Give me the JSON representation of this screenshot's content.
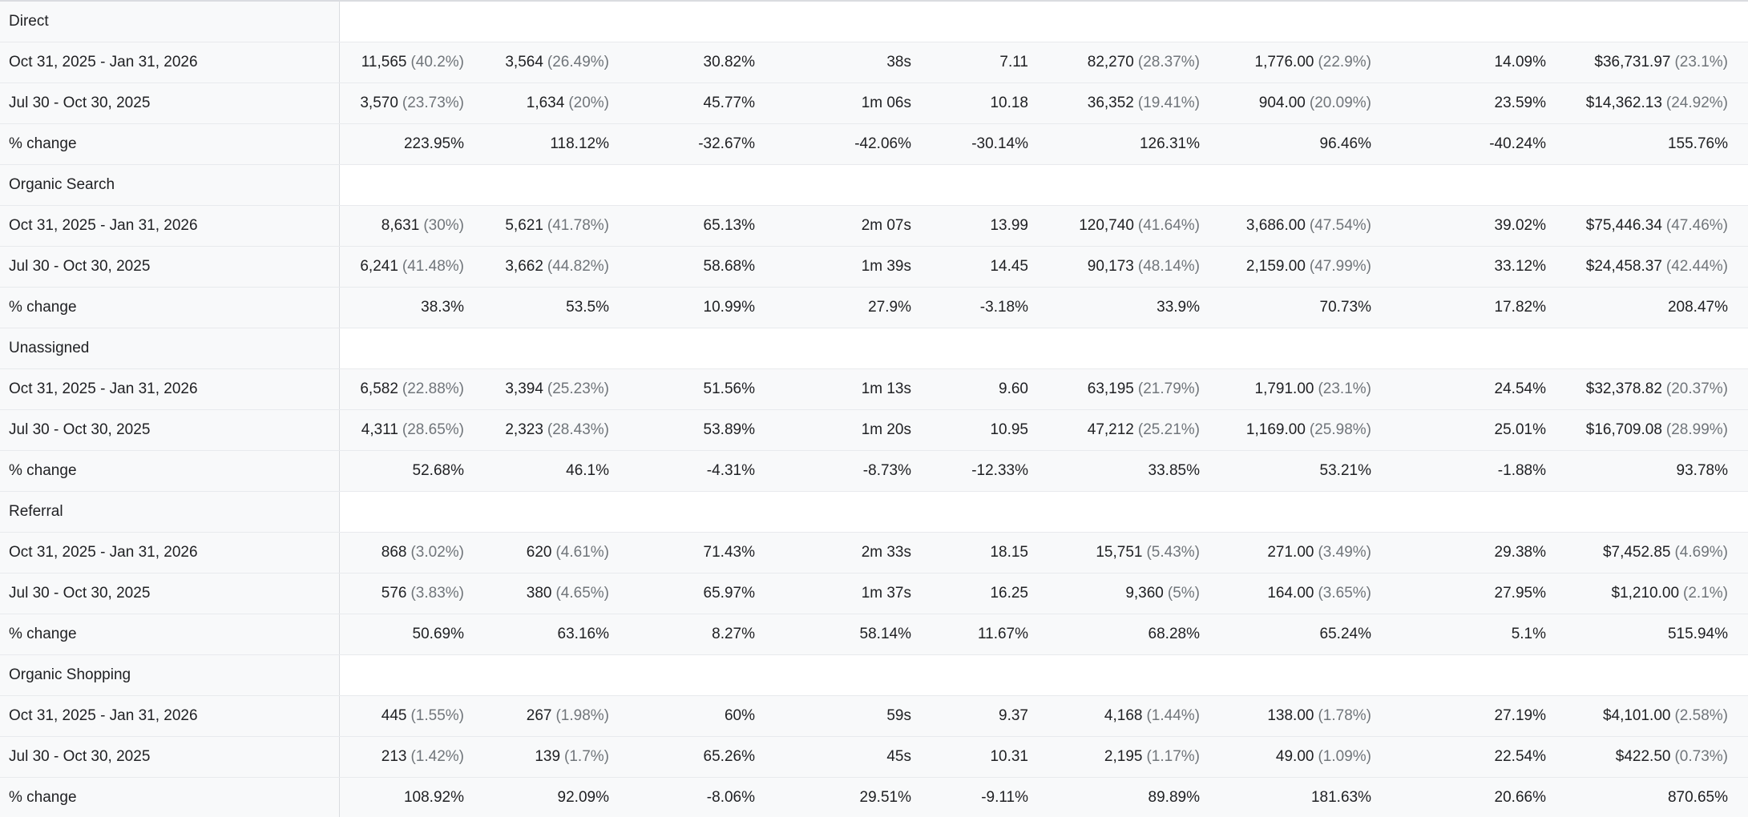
{
  "groups": [
    {
      "name": "Direct",
      "rows": [
        {
          "label": "Oct 31, 2025 - Jan 31, 2026",
          "cells": [
            [
              "11,565",
              "(40.2%)"
            ],
            [
              "3,564",
              "(26.49%)"
            ],
            [
              "30.82%",
              ""
            ],
            [
              "38s",
              ""
            ],
            [
              "7.11",
              ""
            ],
            [
              "82,270",
              "(28.37%)"
            ],
            [
              "1,776.00",
              "(22.9%)"
            ],
            [
              "14.09%",
              ""
            ],
            [
              "$36,731.97",
              "(23.1%)"
            ]
          ]
        },
        {
          "label": "Jul 30 - Oct 30, 2025",
          "cells": [
            [
              "3,570",
              "(23.73%)"
            ],
            [
              "1,634",
              "(20%)"
            ],
            [
              "45.77%",
              ""
            ],
            [
              "1m 06s",
              ""
            ],
            [
              "10.18",
              ""
            ],
            [
              "36,352",
              "(19.41%)"
            ],
            [
              "904.00",
              "(20.09%)"
            ],
            [
              "23.59%",
              ""
            ],
            [
              "$14,362.13",
              "(24.92%)"
            ]
          ]
        },
        {
          "label": "% change",
          "cells": [
            [
              "223.95%",
              ""
            ],
            [
              "118.12%",
              ""
            ],
            [
              "-32.67%",
              ""
            ],
            [
              "-42.06%",
              ""
            ],
            [
              "-30.14%",
              ""
            ],
            [
              "126.31%",
              ""
            ],
            [
              "96.46%",
              ""
            ],
            [
              "-40.24%",
              ""
            ],
            [
              "155.76%",
              ""
            ]
          ]
        }
      ]
    },
    {
      "name": "Organic Search",
      "rows": [
        {
          "label": "Oct 31, 2025 - Jan 31, 2026",
          "cells": [
            [
              "8,631",
              "(30%)"
            ],
            [
              "5,621",
              "(41.78%)"
            ],
            [
              "65.13%",
              ""
            ],
            [
              "2m 07s",
              ""
            ],
            [
              "13.99",
              ""
            ],
            [
              "120,740",
              "(41.64%)"
            ],
            [
              "3,686.00",
              "(47.54%)"
            ],
            [
              "39.02%",
              ""
            ],
            [
              "$75,446.34",
              "(47.46%)"
            ]
          ]
        },
        {
          "label": "Jul 30 - Oct 30, 2025",
          "cells": [
            [
              "6,241",
              "(41.48%)"
            ],
            [
              "3,662",
              "(44.82%)"
            ],
            [
              "58.68%",
              ""
            ],
            [
              "1m 39s",
              ""
            ],
            [
              "14.45",
              ""
            ],
            [
              "90,173",
              "(48.14%)"
            ],
            [
              "2,159.00",
              "(47.99%)"
            ],
            [
              "33.12%",
              ""
            ],
            [
              "$24,458.37",
              "(42.44%)"
            ]
          ]
        },
        {
          "label": "% change",
          "cells": [
            [
              "38.3%",
              ""
            ],
            [
              "53.5%",
              ""
            ],
            [
              "10.99%",
              ""
            ],
            [
              "27.9%",
              ""
            ],
            [
              "-3.18%",
              ""
            ],
            [
              "33.9%",
              ""
            ],
            [
              "70.73%",
              ""
            ],
            [
              "17.82%",
              ""
            ],
            [
              "208.47%",
              ""
            ]
          ]
        }
      ]
    },
    {
      "name": "Unassigned",
      "rows": [
        {
          "label": "Oct 31, 2025 - Jan 31, 2026",
          "cells": [
            [
              "6,582",
              "(22.88%)"
            ],
            [
              "3,394",
              "(25.23%)"
            ],
            [
              "51.56%",
              ""
            ],
            [
              "1m 13s",
              ""
            ],
            [
              "9.60",
              ""
            ],
            [
              "63,195",
              "(21.79%)"
            ],
            [
              "1,791.00",
              "(23.1%)"
            ],
            [
              "24.54%",
              ""
            ],
            [
              "$32,378.82",
              "(20.37%)"
            ]
          ]
        },
        {
          "label": "Jul 30 - Oct 30, 2025",
          "cells": [
            [
              "4,311",
              "(28.65%)"
            ],
            [
              "2,323",
              "(28.43%)"
            ],
            [
              "53.89%",
              ""
            ],
            [
              "1m 20s",
              ""
            ],
            [
              "10.95",
              ""
            ],
            [
              "47,212",
              "(25.21%)"
            ],
            [
              "1,169.00",
              "(25.98%)"
            ],
            [
              "25.01%",
              ""
            ],
            [
              "$16,709.08",
              "(28.99%)"
            ]
          ]
        },
        {
          "label": "% change",
          "cells": [
            [
              "52.68%",
              ""
            ],
            [
              "46.1%",
              ""
            ],
            [
              "-4.31%",
              ""
            ],
            [
              "-8.73%",
              ""
            ],
            [
              "-12.33%",
              ""
            ],
            [
              "33.85%",
              ""
            ],
            [
              "53.21%",
              ""
            ],
            [
              "-1.88%",
              ""
            ],
            [
              "93.78%",
              ""
            ]
          ]
        }
      ]
    },
    {
      "name": "Referral",
      "rows": [
        {
          "label": "Oct 31, 2025 - Jan 31, 2026",
          "cells": [
            [
              "868",
              "(3.02%)"
            ],
            [
              "620",
              "(4.61%)"
            ],
            [
              "71.43%",
              ""
            ],
            [
              "2m 33s",
              ""
            ],
            [
              "18.15",
              ""
            ],
            [
              "15,751",
              "(5.43%)"
            ],
            [
              "271.00",
              "(3.49%)"
            ],
            [
              "29.38%",
              ""
            ],
            [
              "$7,452.85",
              "(4.69%)"
            ]
          ]
        },
        {
          "label": "Jul 30 - Oct 30, 2025",
          "cells": [
            [
              "576",
              "(3.83%)"
            ],
            [
              "380",
              "(4.65%)"
            ],
            [
              "65.97%",
              ""
            ],
            [
              "1m 37s",
              ""
            ],
            [
              "16.25",
              ""
            ],
            [
              "9,360",
              "(5%)"
            ],
            [
              "164.00",
              "(3.65%)"
            ],
            [
              "27.95%",
              ""
            ],
            [
              "$1,210.00",
              "(2.1%)"
            ]
          ]
        },
        {
          "label": "% change",
          "cells": [
            [
              "50.69%",
              ""
            ],
            [
              "63.16%",
              ""
            ],
            [
              "8.27%",
              ""
            ],
            [
              "58.14%",
              ""
            ],
            [
              "11.67%",
              ""
            ],
            [
              "68.28%",
              ""
            ],
            [
              "65.24%",
              ""
            ],
            [
              "5.1%",
              ""
            ],
            [
              "515.94%",
              ""
            ]
          ]
        }
      ]
    },
    {
      "name": "Organic Shopping",
      "rows": [
        {
          "label": "Oct 31, 2025 - Jan 31, 2026",
          "cells": [
            [
              "445",
              "(1.55%)"
            ],
            [
              "267",
              "(1.98%)"
            ],
            [
              "60%",
              ""
            ],
            [
              "59s",
              ""
            ],
            [
              "9.37",
              ""
            ],
            [
              "4,168",
              "(1.44%)"
            ],
            [
              "138.00",
              "(1.78%)"
            ],
            [
              "27.19%",
              ""
            ],
            [
              "$4,101.00",
              "(2.58%)"
            ]
          ]
        },
        {
          "label": "Jul 30 - Oct 30, 2025",
          "cells": [
            [
              "213",
              "(1.42%)"
            ],
            [
              "139",
              "(1.7%)"
            ],
            [
              "65.26%",
              ""
            ],
            [
              "45s",
              ""
            ],
            [
              "10.31",
              ""
            ],
            [
              "2,195",
              "(1.17%)"
            ],
            [
              "49.00",
              "(1.09%)"
            ],
            [
              "22.54%",
              ""
            ],
            [
              "$422.50",
              "(0.73%)"
            ]
          ]
        },
        {
          "label": "% change",
          "cells": [
            [
              "108.92%",
              ""
            ],
            [
              "92.09%",
              ""
            ],
            [
              "-8.06%",
              ""
            ],
            [
              "29.51%",
              ""
            ],
            [
              "-9.11%",
              ""
            ],
            [
              "89.89%",
              ""
            ],
            [
              "181.63%",
              ""
            ],
            [
              "20.66%",
              ""
            ],
            [
              "870.65%",
              ""
            ]
          ]
        }
      ]
    }
  ]
}
